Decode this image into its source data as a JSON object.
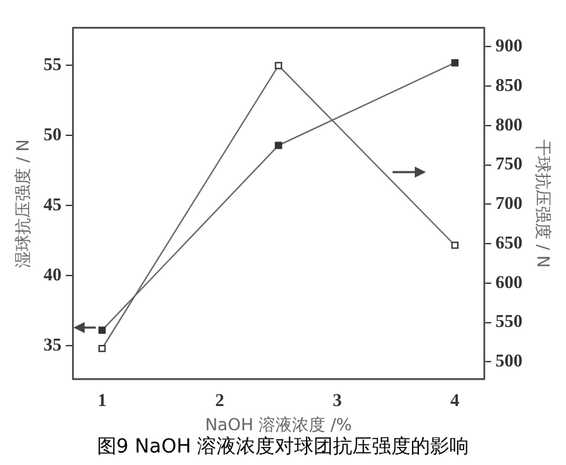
{
  "chart_data": {
    "type": "line",
    "title": "图9 NaOH 溶液浓度对球团抗压强度的影响",
    "xlabel": "NaOH 溶液浓度 /%",
    "ylabel": "湿球抗压强度 / N",
    "y2label": "干球抗压强度 / N",
    "x": [
      1,
      2.5,
      4
    ],
    "series": [
      {
        "color": "#666666",
        "values": [
          36.1,
          49.3,
          55.2
        ]
      },
      {
        "color": "#666666",
        "axis": "y2",
        "values": [
          517,
          876,
          648
        ]
      }
    ],
    "xlim": [
      0.75,
      4.25
    ],
    "xticks": [
      1,
      2,
      3,
      4
    ],
    "ylim": [
      32.6,
      57.7
    ],
    "yticks": [
      35,
      40,
      45,
      50,
      55
    ],
    "y2lim": [
      478,
      924
    ],
    "y2ticks": [
      500,
      550,
      600,
      650,
      700,
      750,
      800,
      850,
      900
    ],
    "grid": false,
    "legend": false,
    "marker": "square",
    "line_style": "solid"
  }
}
